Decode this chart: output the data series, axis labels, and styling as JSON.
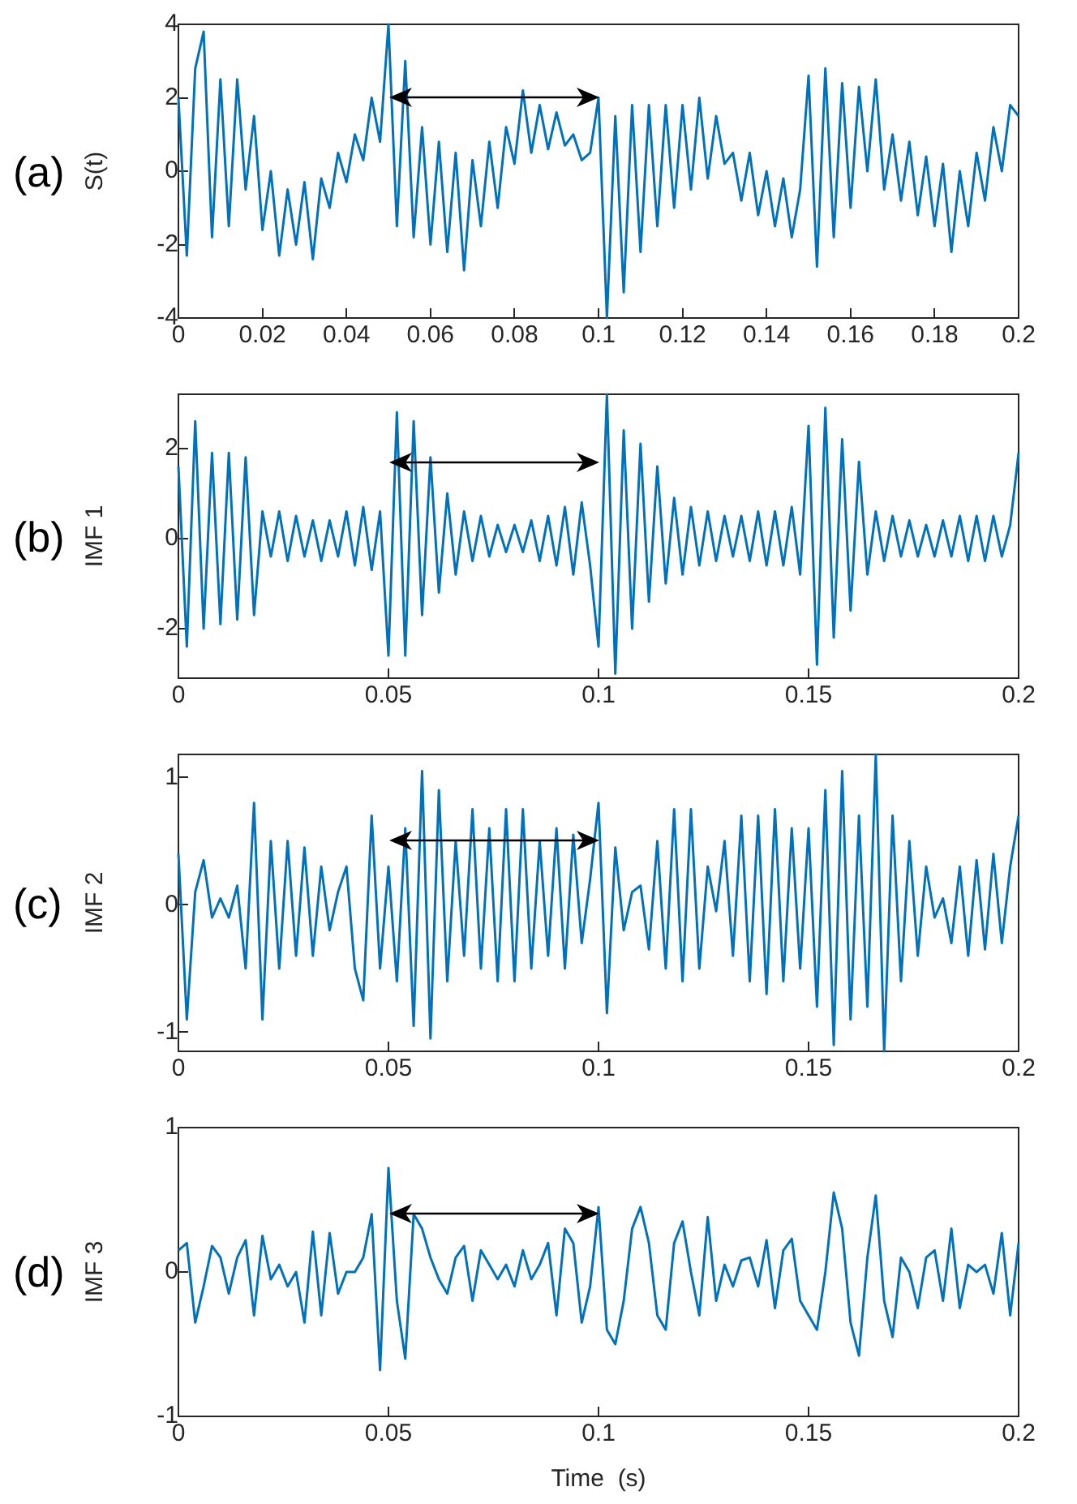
{
  "chart_data": [
    {
      "type": "line",
      "ylabel": "S(t)",
      "annotations": [
        "(a)"
      ],
      "marker": "none",
      "color": "#0072bd",
      "x": [
        0,
        0.002,
        0.004,
        0.006,
        0.008,
        0.01,
        0.012,
        0.014,
        0.016,
        0.018,
        0.02,
        0.022,
        0.024,
        0.026,
        0.028,
        0.03,
        0.032,
        0.034,
        0.036,
        0.038,
        0.04,
        0.042,
        0.044,
        0.046,
        0.048,
        0.05,
        0.052,
        0.054,
        0.056,
        0.058,
        0.06,
        0.062,
        0.064,
        0.066,
        0.068,
        0.07,
        0.072,
        0.074,
        0.076,
        0.078,
        0.08,
        0.082,
        0.084,
        0.086,
        0.088,
        0.09,
        0.092,
        0.094,
        0.096,
        0.098,
        0.1,
        0.102,
        0.104,
        0.106,
        0.108,
        0.11,
        0.112,
        0.114,
        0.116,
        0.118,
        0.12,
        0.122,
        0.124,
        0.126,
        0.128,
        0.13,
        0.132,
        0.134,
        0.136,
        0.138,
        0.14,
        0.142,
        0.144,
        0.146,
        0.148,
        0.15,
        0.152,
        0.154,
        0.156,
        0.158,
        0.16,
        0.162,
        0.164,
        0.166,
        0.168,
        0.17,
        0.172,
        0.174,
        0.176,
        0.178,
        0.18,
        0.182,
        0.184,
        0.186,
        0.188,
        0.19,
        0.192,
        0.194,
        0.196,
        0.198,
        0.2
      ],
      "values": [
        2.0,
        -2.3,
        2.8,
        3.8,
        -1.8,
        2.5,
        -1.5,
        2.5,
        -0.5,
        1.5,
        -1.6,
        0.0,
        -2.3,
        -0.5,
        -2.0,
        -0.3,
        -2.4,
        -0.2,
        -1.0,
        0.5,
        -0.3,
        1.0,
        0.3,
        2.0,
        0.8,
        4.0,
        -1.5,
        3.0,
        -1.8,
        1.2,
        -2.0,
        0.8,
        -2.2,
        0.5,
        -2.7,
        0.3,
        -1.5,
        0.8,
        -1.0,
        1.2,
        0.2,
        2.2,
        0.5,
        1.8,
        0.6,
        1.6,
        0.7,
        1.0,
        0.3,
        0.5,
        2.0,
        -4.0,
        1.5,
        -3.3,
        1.8,
        -2.2,
        1.8,
        -1.5,
        1.8,
        -1.0,
        1.8,
        -0.5,
        2.0,
        -0.2,
        1.5,
        0.2,
        0.5,
        -0.8,
        0.5,
        -1.2,
        0.0,
        -1.5,
        -0.2,
        -1.8,
        -0.5,
        2.6,
        -2.6,
        2.8,
        -1.8,
        2.4,
        -1.0,
        2.3,
        0.0,
        2.5,
        -0.5,
        1.0,
        -0.8,
        0.8,
        -1.2,
        0.4,
        -1.5,
        0.2,
        -2.2,
        0.0,
        -1.5,
        0.5,
        -0.8,
        1.2,
        0.0,
        1.8,
        1.5
      ],
      "xlim": [
        0,
        0.2
      ],
      "xticks": [
        0,
        0.02,
        0.04,
        0.06,
        0.08,
        0.1,
        0.12,
        0.14,
        0.16,
        0.18,
        0.2
      ],
      "ylim": [
        -4,
        4
      ],
      "yticks": [
        -4,
        -2,
        0,
        2,
        4
      ],
      "grid": false,
      "legend": false
    },
    {
      "type": "line",
      "ylabel": "IMF 1",
      "annotations": [
        "(b)"
      ],
      "marker": "none",
      "color": "#0072bd",
      "x": [
        0,
        0.002,
        0.004,
        0.006,
        0.008,
        0.01,
        0.012,
        0.014,
        0.016,
        0.018,
        0.02,
        0.022,
        0.024,
        0.026,
        0.028,
        0.03,
        0.032,
        0.034,
        0.036,
        0.038,
        0.04,
        0.042,
        0.044,
        0.046,
        0.048,
        0.05,
        0.052,
        0.054,
        0.056,
        0.058,
        0.06,
        0.062,
        0.064,
        0.066,
        0.068,
        0.07,
        0.072,
        0.074,
        0.076,
        0.078,
        0.08,
        0.082,
        0.084,
        0.086,
        0.088,
        0.09,
        0.092,
        0.094,
        0.096,
        0.098,
        0.1,
        0.102,
        0.104,
        0.106,
        0.108,
        0.11,
        0.112,
        0.114,
        0.116,
        0.118,
        0.12,
        0.122,
        0.124,
        0.126,
        0.128,
        0.13,
        0.132,
        0.134,
        0.136,
        0.138,
        0.14,
        0.142,
        0.144,
        0.146,
        0.148,
        0.15,
        0.152,
        0.154,
        0.156,
        0.158,
        0.16,
        0.162,
        0.164,
        0.166,
        0.168,
        0.17,
        0.172,
        0.174,
        0.176,
        0.178,
        0.18,
        0.182,
        0.184,
        0.186,
        0.188,
        0.19,
        0.192,
        0.194,
        0.196,
        0.198,
        0.2
      ],
      "values": [
        1.6,
        -2.4,
        2.6,
        -2.0,
        1.9,
        -1.9,
        1.9,
        -1.8,
        1.8,
        -1.7,
        0.6,
        -0.4,
        0.6,
        -0.5,
        0.5,
        -0.4,
        0.4,
        -0.5,
        0.4,
        -0.4,
        0.6,
        -0.6,
        0.7,
        -0.7,
        0.6,
        -2.6,
        2.8,
        -2.6,
        2.6,
        -1.7,
        1.8,
        -1.2,
        1.0,
        -0.8,
        0.6,
        -0.5,
        0.5,
        -0.4,
        0.3,
        -0.3,
        0.3,
        -0.3,
        0.4,
        -0.5,
        0.5,
        -0.6,
        0.7,
        -0.8,
        0.8,
        -0.6,
        -2.4,
        3.2,
        -3.0,
        2.4,
        -2.0,
        2.1,
        -1.4,
        1.6,
        -1.0,
        0.9,
        -0.8,
        0.7,
        -0.6,
        0.6,
        -0.5,
        0.5,
        -0.4,
        0.5,
        -0.5,
        0.6,
        -0.6,
        0.6,
        -0.6,
        0.7,
        -0.8,
        2.5,
        -2.8,
        2.9,
        -2.2,
        2.2,
        -1.6,
        1.7,
        -0.8,
        0.6,
        -0.5,
        0.5,
        -0.4,
        0.4,
        -0.4,
        0.3,
        -0.4,
        0.4,
        -0.4,
        0.5,
        -0.5,
        0.5,
        -0.5,
        0.5,
        -0.4,
        0.3,
        1.9
      ],
      "xlim": [
        0,
        0.2
      ],
      "xticks": [
        0,
        0.05,
        0.1,
        0.15,
        0.2
      ],
      "ylim": [
        -3.1,
        3.2
      ],
      "yticks": [
        -2,
        0,
        2
      ],
      "grid": false,
      "legend": false
    },
    {
      "type": "line",
      "ylabel": "IMF 2",
      "annotations": [
        "(c)"
      ],
      "marker": "none",
      "color": "#0072bd",
      "x": [
        0,
        0.002,
        0.004,
        0.006,
        0.008,
        0.01,
        0.012,
        0.014,
        0.016,
        0.018,
        0.02,
        0.022,
        0.024,
        0.026,
        0.028,
        0.03,
        0.032,
        0.034,
        0.036,
        0.038,
        0.04,
        0.042,
        0.044,
        0.046,
        0.048,
        0.05,
        0.052,
        0.054,
        0.056,
        0.058,
        0.06,
        0.062,
        0.064,
        0.066,
        0.068,
        0.07,
        0.072,
        0.074,
        0.076,
        0.078,
        0.08,
        0.082,
        0.084,
        0.086,
        0.088,
        0.09,
        0.092,
        0.094,
        0.096,
        0.098,
        0.1,
        0.102,
        0.104,
        0.106,
        0.108,
        0.11,
        0.112,
        0.114,
        0.116,
        0.118,
        0.12,
        0.122,
        0.124,
        0.126,
        0.128,
        0.13,
        0.132,
        0.134,
        0.136,
        0.138,
        0.14,
        0.142,
        0.144,
        0.146,
        0.148,
        0.15,
        0.152,
        0.154,
        0.156,
        0.158,
        0.16,
        0.162,
        0.164,
        0.166,
        0.168,
        0.17,
        0.172,
        0.174,
        0.176,
        0.178,
        0.18,
        0.182,
        0.184,
        0.186,
        0.188,
        0.19,
        0.192,
        0.194,
        0.196,
        0.198,
        0.2
      ],
      "values": [
        0.4,
        -0.9,
        0.1,
        0.35,
        -0.1,
        0.05,
        -0.1,
        0.15,
        -0.5,
        0.8,
        -0.9,
        0.5,
        -0.5,
        0.5,
        -0.4,
        0.45,
        -0.4,
        0.3,
        -0.2,
        0.1,
        0.3,
        -0.5,
        -0.75,
        0.7,
        -0.5,
        0.3,
        -0.6,
        0.6,
        -0.95,
        1.05,
        -1.05,
        0.9,
        -0.6,
        0.5,
        -0.4,
        0.75,
        -0.5,
        0.6,
        -0.6,
        0.75,
        -0.6,
        0.75,
        -0.5,
        0.5,
        -0.4,
        0.6,
        -0.5,
        0.55,
        -0.3,
        0.2,
        0.8,
        -0.85,
        0.45,
        -0.2,
        0.1,
        0.15,
        -0.35,
        0.5,
        -0.5,
        0.75,
        -0.6,
        0.75,
        -0.5,
        0.3,
        -0.05,
        0.5,
        -0.4,
        0.7,
        -0.6,
        0.7,
        -0.7,
        0.75,
        -0.6,
        0.6,
        -0.5,
        0.6,
        -0.8,
        0.9,
        -1.1,
        1.05,
        -0.9,
        0.7,
        -0.8,
        1.18,
        -1.15,
        0.7,
        -0.6,
        0.5,
        -0.4,
        0.3,
        -0.1,
        0.05,
        -0.3,
        0.3,
        -0.4,
        0.35,
        -0.35,
        0.4,
        -0.3,
        0.3,
        0.7
      ],
      "xlim": [
        0,
        0.2
      ],
      "xticks": [
        0,
        0.05,
        0.1,
        0.15,
        0.2
      ],
      "ylim": [
        -1.15,
        1.18
      ],
      "yticks": [
        -1,
        0,
        1
      ],
      "grid": false,
      "legend": false
    },
    {
      "type": "line",
      "xlabel": "Time  (s)",
      "ylabel": "IMF 3",
      "annotations": [
        "(d)"
      ],
      "marker": "none",
      "color": "#0072bd",
      "x": [
        0,
        0.002,
        0.004,
        0.006,
        0.008,
        0.01,
        0.012,
        0.014,
        0.016,
        0.018,
        0.02,
        0.022,
        0.024,
        0.026,
        0.028,
        0.03,
        0.032,
        0.034,
        0.036,
        0.038,
        0.04,
        0.042,
        0.044,
        0.046,
        0.048,
        0.05,
        0.052,
        0.054,
        0.056,
        0.058,
        0.06,
        0.062,
        0.064,
        0.066,
        0.068,
        0.07,
        0.072,
        0.074,
        0.076,
        0.078,
        0.08,
        0.082,
        0.084,
        0.086,
        0.088,
        0.09,
        0.092,
        0.094,
        0.096,
        0.098,
        0.1,
        0.102,
        0.104,
        0.106,
        0.108,
        0.11,
        0.112,
        0.114,
        0.116,
        0.118,
        0.12,
        0.122,
        0.124,
        0.126,
        0.128,
        0.13,
        0.132,
        0.134,
        0.136,
        0.138,
        0.14,
        0.142,
        0.144,
        0.146,
        0.148,
        0.15,
        0.152,
        0.154,
        0.156,
        0.158,
        0.16,
        0.162,
        0.164,
        0.166,
        0.168,
        0.17,
        0.172,
        0.174,
        0.176,
        0.178,
        0.18,
        0.182,
        0.184,
        0.186,
        0.188,
        0.19,
        0.192,
        0.194,
        0.196,
        0.198,
        0.2
      ],
      "values": [
        0.15,
        0.2,
        -0.35,
        -0.1,
        0.18,
        0.1,
        -0.15,
        0.1,
        0.22,
        -0.3,
        0.25,
        -0.05,
        0.05,
        -0.1,
        0.0,
        -0.35,
        0.28,
        -0.3,
        0.27,
        -0.15,
        0.0,
        0.0,
        0.1,
        0.4,
        -0.68,
        0.72,
        -0.2,
        -0.6,
        0.4,
        0.3,
        0.1,
        -0.05,
        -0.15,
        0.1,
        0.18,
        -0.2,
        0.15,
        0.05,
        -0.05,
        0.05,
        -0.1,
        0.15,
        -0.05,
        0.05,
        0.2,
        -0.3,
        0.3,
        0.2,
        -0.35,
        -0.1,
        0.45,
        -0.4,
        -0.5,
        -0.2,
        0.3,
        0.45,
        0.2,
        -0.3,
        -0.4,
        0.2,
        0.35,
        0.0,
        -0.3,
        0.38,
        -0.2,
        0.05,
        -0.1,
        0.08,
        0.1,
        -0.1,
        0.22,
        -0.25,
        0.15,
        0.23,
        -0.2,
        -0.3,
        -0.4,
        0.0,
        0.55,
        0.3,
        -0.35,
        -0.58,
        0.1,
        0.53,
        -0.2,
        -0.45,
        0.1,
        0.0,
        -0.25,
        0.1,
        0.15,
        -0.2,
        0.3,
        -0.25,
        0.05,
        0.0,
        0.05,
        -0.15,
        0.27,
        -0.3,
        0.2
      ],
      "xlim": [
        0,
        0.2
      ],
      "xticks": [
        0,
        0.05,
        0.1,
        0.15,
        0.2
      ],
      "ylim": [
        -1,
        1
      ],
      "yticks": [
        -1,
        0,
        1
      ],
      "grid": false,
      "legend": false
    }
  ]
}
